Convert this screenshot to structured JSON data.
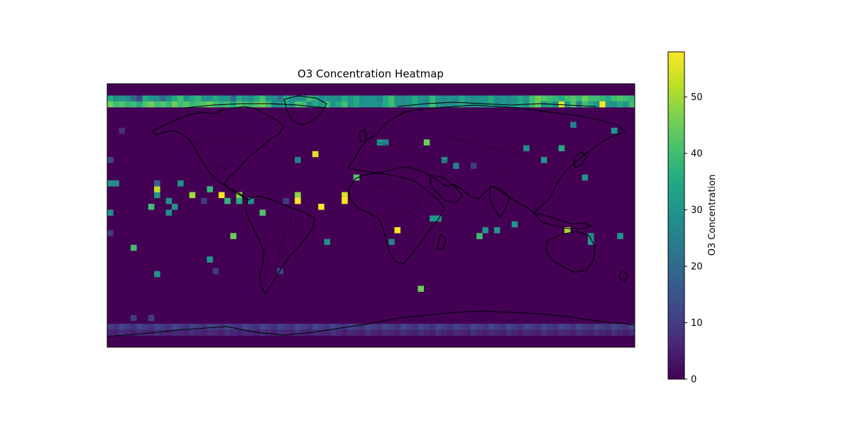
{
  "chart_data": {
    "type": "heatmap",
    "title": "O3 Concentration Heatmap",
    "projection": "PlateCarree world map with coastlines and country borders",
    "x_range": [
      -180,
      180
    ],
    "y_range": [
      -90,
      90
    ],
    "grid": "36 x 90 cells (4-degree cells)",
    "colormap": "viridis",
    "colorbar": {
      "label": "O3 Concentration",
      "range": [
        0,
        58
      ],
      "ticks": [
        0,
        10,
        20,
        30,
        40,
        50
      ],
      "tick_labels": [
        "0",
        "10",
        "20",
        "30",
        "40",
        "50"
      ],
      "position": "right"
    },
    "band_rows": [
      {
        "lat_center": 80,
        "values": [
          35,
          28,
          30,
          28,
          20,
          12,
          35,
          30,
          28,
          20,
          28,
          35,
          40,
          30,
          35,
          38,
          30,
          28,
          35,
          30,
          30,
          20,
          35,
          30,
          28,
          35,
          40,
          30,
          28,
          22,
          35,
          30,
          28,
          30,
          40,
          35,
          28,
          30,
          30,
          28,
          35,
          30,
          35,
          28,
          30,
          30,
          25,
          35,
          40,
          30,
          28,
          30,
          35,
          30,
          28,
          38,
          30,
          28,
          30,
          28,
          35,
          30,
          28,
          30,
          30,
          35,
          28,
          30,
          28,
          30,
          35,
          30,
          40,
          45,
          42,
          40,
          38,
          35,
          40,
          42,
          38,
          45,
          40,
          40,
          38,
          35,
          40,
          42,
          40,
          38
        ]
      },
      {
        "lat_center": 76,
        "values": [
          45,
          40,
          42,
          38,
          40,
          35,
          42,
          45,
          40,
          42,
          38,
          45,
          40,
          42,
          38,
          40,
          42,
          45,
          40,
          38,
          40,
          35,
          42,
          40,
          38,
          42,
          45,
          40,
          28,
          30,
          35,
          30,
          42,
          40,
          28,
          35,
          30,
          40,
          30,
          35,
          40,
          30,
          35,
          28,
          30,
          30,
          28,
          35,
          40,
          30,
          28,
          30,
          35,
          30,
          28,
          40,
          30,
          28,
          30,
          28,
          35,
          30,
          28,
          30,
          30,
          35,
          28,
          30,
          28,
          30,
          35,
          30,
          40,
          45,
          30,
          35,
          28,
          55,
          30,
          42,
          25,
          40,
          35,
          30,
          58,
          30,
          28,
          35,
          30,
          40
        ]
      },
      {
        "lat_center": -76,
        "values": [
          10,
          8,
          12,
          10,
          8,
          12,
          10,
          8,
          12,
          10,
          8,
          12,
          10,
          8,
          12,
          10,
          8,
          12,
          10,
          8,
          12,
          10,
          8,
          12,
          10,
          8,
          12,
          10,
          8,
          12,
          10,
          8,
          12,
          10,
          8,
          12,
          10,
          8,
          12,
          10,
          8,
          12,
          10,
          8,
          12,
          10,
          8,
          12,
          10,
          8,
          12,
          10,
          8,
          12,
          10,
          8,
          12,
          10,
          8,
          12,
          10,
          8,
          12,
          10,
          8,
          12,
          10,
          8,
          12,
          10,
          8,
          12,
          10,
          8,
          12,
          10,
          8,
          12,
          10,
          8,
          12,
          10,
          8,
          12,
          10,
          8,
          12,
          10,
          8,
          12
        ]
      },
      {
        "lat_center": -80,
        "values": [
          6,
          5,
          8,
          6,
          5,
          7,
          6,
          5,
          8,
          6,
          5,
          7,
          6,
          5,
          8,
          6,
          5,
          7,
          6,
          5,
          8,
          6,
          5,
          7,
          6,
          5,
          8,
          6,
          5,
          7,
          6,
          5,
          8,
          6,
          5,
          7,
          6,
          5,
          8,
          6,
          5,
          7,
          6,
          5,
          8,
          6,
          5,
          7,
          6,
          5,
          8,
          6,
          5,
          7,
          6,
          5,
          8,
          6,
          5,
          7,
          6,
          5,
          8,
          6,
          5,
          7,
          6,
          5,
          8,
          6,
          5,
          7,
          6,
          5,
          8,
          6,
          5,
          7,
          6,
          5,
          8,
          6,
          5,
          7,
          6,
          5,
          8,
          6,
          5,
          7
        ]
      }
    ],
    "hotspots": [
      {
        "lon": -178,
        "lat": 38,
        "value": 12
      },
      {
        "lon": -178,
        "lat": 22,
        "value": 28
      },
      {
        "lon": -174,
        "lat": 22,
        "value": 28
      },
      {
        "lon": -178,
        "lat": 2,
        "value": 28
      },
      {
        "lon": -178,
        "lat": -12,
        "value": 10
      },
      {
        "lon": -170,
        "lat": 58,
        "value": 8
      },
      {
        "lon": -162,
        "lat": -22,
        "value": 40
      },
      {
        "lon": -162,
        "lat": -70,
        "value": 10
      },
      {
        "lon": -150,
        "lat": -70,
        "value": 10
      },
      {
        "lon": -150,
        "lat": 6,
        "value": 40
      },
      {
        "lon": -146,
        "lat": 14,
        "value": 30
      },
      {
        "lon": -146,
        "lat": 18,
        "value": 52
      },
      {
        "lon": -146,
        "lat": 22,
        "value": 18
      },
      {
        "lon": -146,
        "lat": -40,
        "value": 30
      },
      {
        "lon": -138,
        "lat": 10,
        "value": 30
      },
      {
        "lon": -138,
        "lat": 2,
        "value": 28
      },
      {
        "lon": -134,
        "lat": 6,
        "value": 30
      },
      {
        "lon": -130,
        "lat": 22,
        "value": 30
      },
      {
        "lon": -122,
        "lat": 14,
        "value": 50
      },
      {
        "lon": -114,
        "lat": 10,
        "value": 10
      },
      {
        "lon": -110,
        "lat": 18,
        "value": 38
      },
      {
        "lon": -110,
        "lat": -30,
        "value": 30
      },
      {
        "lon": -106,
        "lat": -38,
        "value": 10
      },
      {
        "lon": -102,
        "lat": 14,
        "value": 58
      },
      {
        "lon": -98,
        "lat": 10,
        "value": 38
      },
      {
        "lon": -94,
        "lat": -14,
        "value": 45
      },
      {
        "lon": -90,
        "lat": 14,
        "value": 48
      },
      {
        "lon": -90,
        "lat": 10,
        "value": 35
      },
      {
        "lon": -82,
        "lat": 10,
        "value": 28
      },
      {
        "lon": -74,
        "lat": 2,
        "value": 42
      },
      {
        "lon": -62,
        "lat": -38,
        "value": 12
      },
      {
        "lon": -58,
        "lat": 10,
        "value": 10
      },
      {
        "lon": -50,
        "lat": 14,
        "value": 48
      },
      {
        "lon": -50,
        "lat": 10,
        "value": 58
      },
      {
        "lon": -50,
        "lat": 38,
        "value": 25
      },
      {
        "lon": -38,
        "lat": 42,
        "value": 55
      },
      {
        "lon": -34,
        "lat": 6,
        "value": 58
      },
      {
        "lon": -30,
        "lat": -18,
        "value": 28
      },
      {
        "lon": -18,
        "lat": 14,
        "value": 55
      },
      {
        "lon": -18,
        "lat": 10,
        "value": 58
      },
      {
        "lon": -10,
        "lat": 26,
        "value": 42
      },
      {
        "lon": 6,
        "lat": 50,
        "value": 30
      },
      {
        "lon": 10,
        "lat": 50,
        "value": 25
      },
      {
        "lon": 18,
        "lat": -10,
        "value": 58
      },
      {
        "lon": 14,
        "lat": -18,
        "value": 25
      },
      {
        "lon": 34,
        "lat": -50,
        "value": 45
      },
      {
        "lon": 38,
        "lat": 50,
        "value": 45
      },
      {
        "lon": 42,
        "lat": -2,
        "value": 30
      },
      {
        "lon": 46,
        "lat": -2,
        "value": 30
      },
      {
        "lon": 50,
        "lat": 38,
        "value": 28
      },
      {
        "lon": 58,
        "lat": 34,
        "value": 25
      },
      {
        "lon": 70,
        "lat": 34,
        "value": 10
      },
      {
        "lon": 74,
        "lat": -14,
        "value": 40
      },
      {
        "lon": 78,
        "lat": -10,
        "value": 30
      },
      {
        "lon": 86,
        "lat": -10,
        "value": 30
      },
      {
        "lon": 98,
        "lat": -6,
        "value": 30
      },
      {
        "lon": 106,
        "lat": 46,
        "value": 28
      },
      {
        "lon": 118,
        "lat": 38,
        "value": 30
      },
      {
        "lon": 130,
        "lat": 46,
        "value": 35
      },
      {
        "lon": 134,
        "lat": -10,
        "value": 50
      },
      {
        "lon": 150,
        "lat": -14,
        "value": 28
      },
      {
        "lon": 150,
        "lat": -18,
        "value": 30
      },
      {
        "lon": 170,
        "lat": -14,
        "value": 30
      },
      {
        "lon": 166,
        "lat": 58,
        "value": 30
      },
      {
        "lon": 146,
        "lat": 26,
        "value": 30
      },
      {
        "lon": 138,
        "lat": 62,
        "value": 25
      }
    ]
  }
}
